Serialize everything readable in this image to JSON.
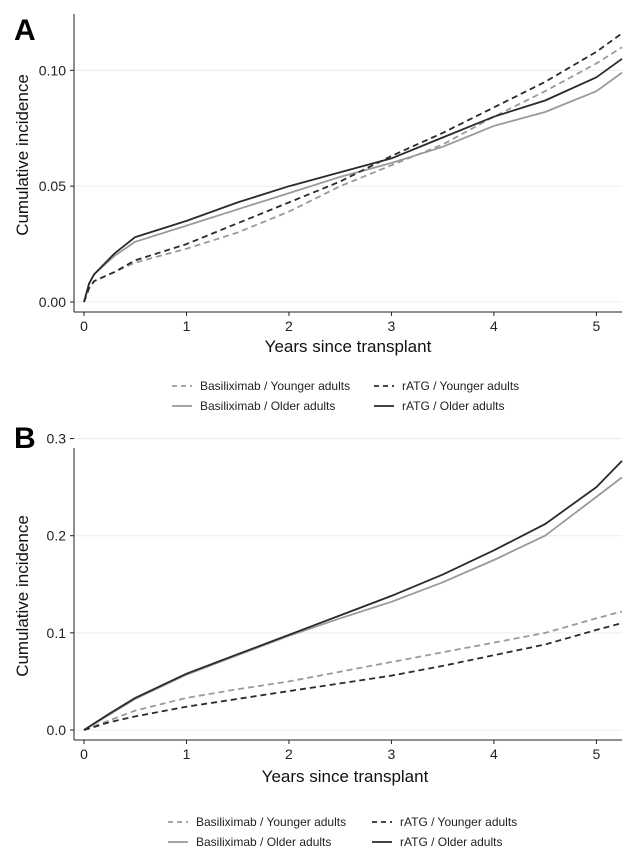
{
  "colors": {
    "light": "#9a9a9a",
    "dark": "#2a2a2a",
    "grid": "#ececec"
  },
  "chart_data": [
    {
      "type": "line",
      "panel_label": "A",
      "title": "",
      "xlabel": "Years since transplant",
      "ylabel": "Cumulative incidence",
      "xlim": [
        0,
        5.25
      ],
      "ylim": [
        0,
        0.12
      ],
      "xticks": [
        0,
        1,
        2,
        3,
        4,
        5
      ],
      "xtick_labels": [
        "0",
        "1",
        "2",
        "3",
        "4",
        "5"
      ],
      "yticks": [
        0,
        0.05,
        0.1
      ],
      "ytick_labels": [
        "0.00",
        "0.05",
        "0.10"
      ],
      "grid": true,
      "legend_position": "bottom",
      "series": [
        {
          "name": "Basiliximab / Younger adults",
          "color": "light",
          "dash": "dashed",
          "x": [
            0,
            0.05,
            0.1,
            0.3,
            0.5,
            1,
            1.5,
            2,
            2.5,
            3,
            3.5,
            4,
            4.5,
            5,
            5.25
          ],
          "y": [
            0,
            0.006,
            0.009,
            0.013,
            0.017,
            0.023,
            0.03,
            0.039,
            0.05,
            0.059,
            0.068,
            0.08,
            0.091,
            0.103,
            0.11
          ]
        },
        {
          "name": "Basiliximab / Older adults",
          "color": "light",
          "dash": "solid",
          "x": [
            0,
            0.05,
            0.1,
            0.3,
            0.5,
            1,
            1.5,
            2,
            2.5,
            3,
            3.5,
            4,
            4.5,
            5,
            5.25
          ],
          "y": [
            0,
            0.008,
            0.012,
            0.02,
            0.026,
            0.033,
            0.04,
            0.047,
            0.054,
            0.06,
            0.067,
            0.076,
            0.082,
            0.091,
            0.099
          ]
        },
        {
          "name": "rATG / Younger adults",
          "color": "dark",
          "dash": "dashed",
          "x": [
            0,
            0.05,
            0.1,
            0.3,
            0.5,
            1,
            1.5,
            2,
            2.5,
            3,
            3.5,
            4,
            4.5,
            5,
            5.25
          ],
          "y": [
            0,
            0.006,
            0.009,
            0.013,
            0.018,
            0.025,
            0.034,
            0.043,
            0.052,
            0.063,
            0.073,
            0.084,
            0.095,
            0.108,
            0.116
          ]
        },
        {
          "name": "rATG / Older adults",
          "color": "dark",
          "dash": "solid",
          "x": [
            0,
            0.05,
            0.1,
            0.3,
            0.5,
            1,
            1.5,
            2,
            2.5,
            3,
            3.5,
            4,
            4.5,
            5,
            5.25
          ],
          "y": [
            0,
            0.008,
            0.012,
            0.021,
            0.028,
            0.035,
            0.043,
            0.05,
            0.056,
            0.062,
            0.071,
            0.08,
            0.087,
            0.097,
            0.105
          ]
        }
      ]
    },
    {
      "type": "line",
      "panel_label": "B",
      "title": "",
      "xlabel": "Years since transplant",
      "ylabel": "Cumulative incidence",
      "xlim": [
        0,
        5.25
      ],
      "ylim": [
        0,
        0.28
      ],
      "xticks": [
        0,
        1,
        2,
        3,
        4,
        5
      ],
      "xtick_labels": [
        "0",
        "1",
        "2",
        "3",
        "4",
        "5"
      ],
      "yticks": [
        0,
        0.1,
        0.2,
        0.3
      ],
      "ytick_labels": [
        "0.0",
        "0.1",
        "0.2",
        "0.3"
      ],
      "grid": true,
      "legend_position": "bottom",
      "series": [
        {
          "name": "Basiliximab / Younger adults",
          "color": "light",
          "dash": "dashed",
          "x": [
            0,
            0.25,
            0.5,
            1,
            1.5,
            2,
            2.5,
            3,
            3.5,
            4,
            4.5,
            5,
            5.25
          ],
          "y": [
            0,
            0.01,
            0.02,
            0.033,
            0.042,
            0.05,
            0.06,
            0.07,
            0.08,
            0.09,
            0.1,
            0.115,
            0.122
          ]
        },
        {
          "name": "Basiliximab / Older adults",
          "color": "light",
          "dash": "solid",
          "x": [
            0,
            0.25,
            0.5,
            1,
            1.5,
            2,
            2.5,
            3,
            3.5,
            4,
            4.5,
            5,
            5.25
          ],
          "y": [
            0,
            0.016,
            0.032,
            0.057,
            0.077,
            0.097,
            0.115,
            0.132,
            0.152,
            0.175,
            0.2,
            0.24,
            0.26
          ]
        },
        {
          "name": "rATG / Younger adults",
          "color": "dark",
          "dash": "dashed",
          "x": [
            0,
            0.25,
            0.5,
            1,
            1.5,
            2,
            2.5,
            3,
            3.5,
            4,
            4.5,
            5,
            5.25
          ],
          "y": [
            0,
            0.008,
            0.014,
            0.024,
            0.032,
            0.04,
            0.048,
            0.056,
            0.066,
            0.077,
            0.088,
            0.103,
            0.11
          ]
        },
        {
          "name": "rATG / Older adults",
          "color": "dark",
          "dash": "solid",
          "x": [
            0,
            0.25,
            0.5,
            1,
            1.5,
            2,
            2.5,
            3,
            3.5,
            4,
            4.5,
            5,
            5.25
          ],
          "y": [
            0,
            0.017,
            0.033,
            0.058,
            0.078,
            0.098,
            0.118,
            0.138,
            0.16,
            0.185,
            0.212,
            0.25,
            0.277
          ]
        }
      ]
    }
  ]
}
